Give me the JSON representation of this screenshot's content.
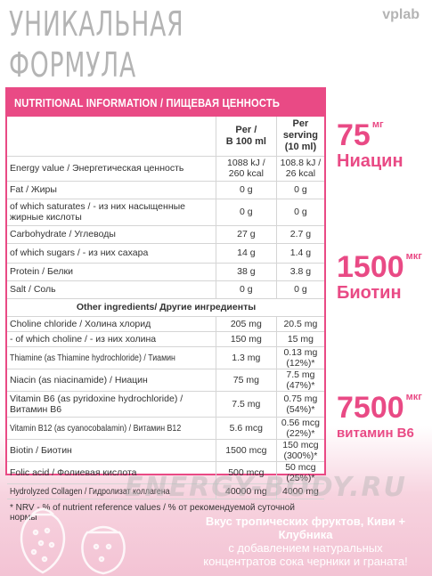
{
  "headline": {
    "line1": "УНИКАЛЬНАЯ",
    "line2": "ФОРМУЛА"
  },
  "brand": "vplab",
  "table": {
    "title": "NUTRITIONAL INFORMATION / ПИЩЕВАЯ ЦЕННОСТЬ",
    "col1": {
      "line1": "Per /",
      "line2": "В 100 ml"
    },
    "col2": {
      "line1": "Per serving",
      "line2": "(10 ml)"
    },
    "rows": [
      {
        "name": "Energy value / Энергетическая ценность",
        "v1": "1088 kJ / 260 kcal",
        "v2": "108.8 kJ / 26 kcal"
      },
      {
        "name": "Fat / Жиры",
        "v1": "0 g",
        "v2": "0 g"
      },
      {
        "name": "of which saturates / - из них насыщенные жирные кислоты",
        "v1": "0 g",
        "v2": "0 g"
      },
      {
        "name": "Carbohydrate / Углеводы",
        "v1": "27 g",
        "v2": "2.7 g"
      },
      {
        "name": "of which sugars / - из них сахара",
        "v1": "14 g",
        "v2": "1.4 g"
      },
      {
        "name": "Protein / Белки",
        "v1": "38 g",
        "v2": "3.8 g"
      },
      {
        "name": "Salt / Соль",
        "v1": "0 g",
        "v2": "0 g"
      }
    ],
    "other_title": "Other ingredients/ Другие ингредиенты",
    "other_rows": [
      {
        "name": "Choline chloride / Холина хлорид",
        "v1": "205 mg",
        "v2": "20.5 mg"
      },
      {
        "name": "- of which choline / - из них холина",
        "v1": "150 mg",
        "v2": "15 mg"
      },
      {
        "name": "Thiamine (as Thiamine hydrochloride) / Тиамин",
        "v1": "1.3 mg",
        "v2": "0.13 mg (12%)*"
      },
      {
        "name": "Niacin (as niacinamide) / Ниацин",
        "v1": "75 mg",
        "v2": "7.5 mg (47%)*"
      },
      {
        "name": "Vitamin B6 (as pyridoxine hydrochloride) / Витамин B6",
        "v1": "7.5 mg",
        "v2": "0.75 mg (54%)*"
      },
      {
        "name": "Vitamin B12 (as cyanocobalamin) / Витамин B12",
        "v1": "5.6 mcg",
        "v2": "0.56 mcg (22%)*"
      },
      {
        "name": "Biotin / Биотин",
        "v1": "1500 mcg",
        "v2": "150 mcg (300%)*"
      },
      {
        "name": "Folic acid / Фолиевая кислота",
        "v1": "500 mcg",
        "v2": "50 mcg (25%)*"
      },
      {
        "name": "Hydrolyzed Collagen / Гидролизат коллагена",
        "v1": "40000 mg",
        "v2": "4000 mg"
      }
    ],
    "footnote": "* NRV - % of nutrient reference values / % от рекомендуемой суточной нормы"
  },
  "stats": [
    {
      "num": "75",
      "unit": "мг",
      "label": "Ниацин"
    },
    {
      "num": "1500",
      "unit": "мкг",
      "label": "Биотин"
    },
    {
      "num": "7500",
      "unit": "мкг",
      "label": "витамин B6"
    }
  ],
  "watermark": "ENERGY-BODY.RU",
  "bottom": {
    "title": "Вкус тропических фруктов, Киви + Клубника",
    "line2": "с добавлением натуральных",
    "line3": "концентратов сока черники и граната!"
  },
  "colors": {
    "accent": "#e94a85",
    "headline": "#b4b4b4",
    "pink_bg": "#f3c3d4"
  }
}
